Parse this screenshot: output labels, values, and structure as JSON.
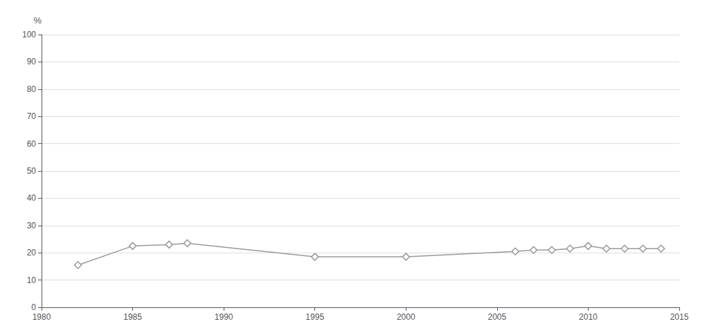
{
  "chart_data": {
    "type": "line",
    "x": [
      1982,
      1985,
      1987,
      1988,
      1995,
      2000,
      2006,
      2007,
      2008,
      2009,
      2010,
      2011,
      2012,
      2013,
      2014
    ],
    "values": [
      15.5,
      22.5,
      23.0,
      23.5,
      18.5,
      18.5,
      20.5,
      21.0,
      21.0,
      21.5,
      22.5,
      21.5,
      21.5,
      21.5,
      21.5
    ],
    "ylabel": "%",
    "color": "#999999",
    "marker": "diamond",
    "xlim": [
      1980,
      2015
    ],
    "xticks": [
      1980,
      1985,
      1990,
      1995,
      2000,
      2005,
      2010,
      2015
    ],
    "ylim": [
      0,
      100
    ],
    "yticks": [
      0,
      10,
      20,
      30,
      40,
      50,
      60,
      70,
      80,
      90,
      100
    ],
    "grid": true
  }
}
